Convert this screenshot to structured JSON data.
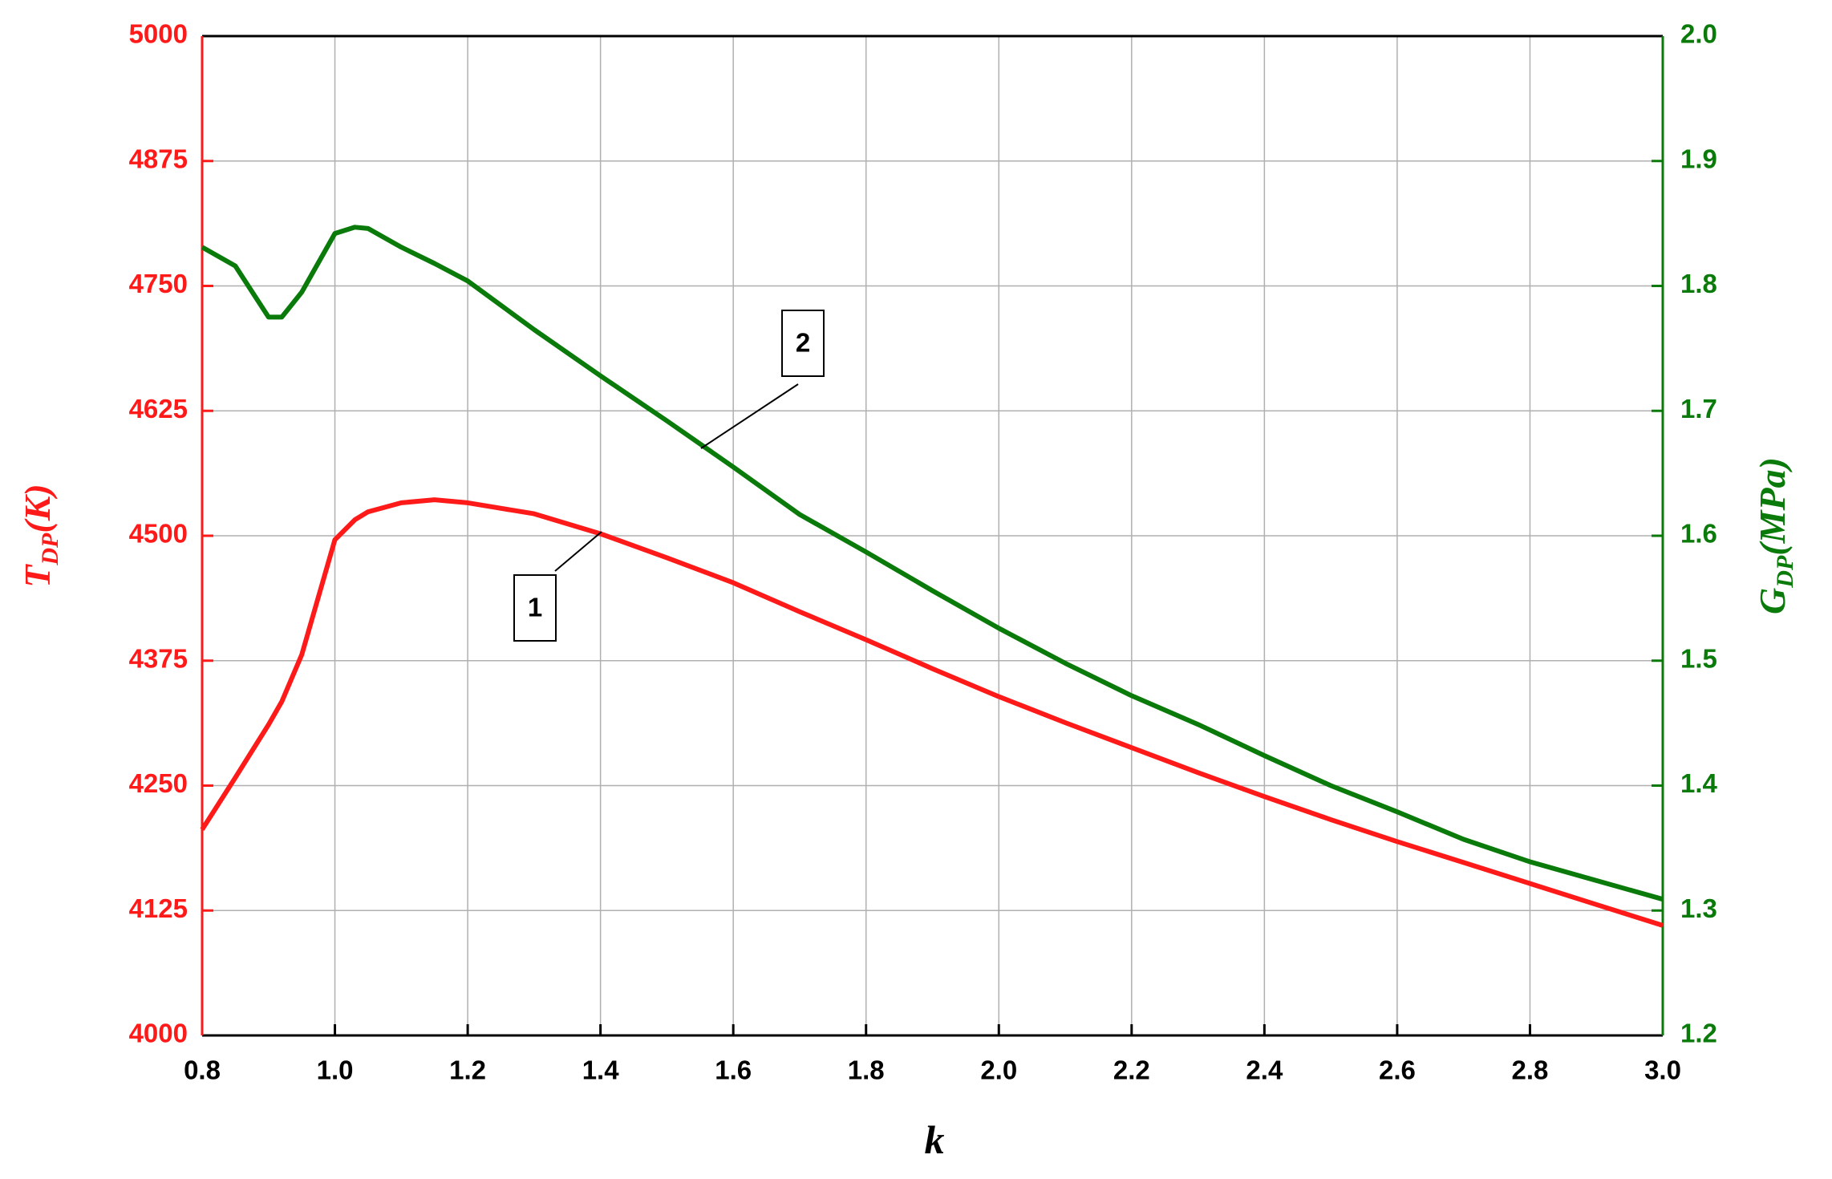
{
  "chart_data": {
    "type": "line",
    "x_label": "k",
    "y_label": {
      "main": "T",
      "sub": "DP",
      "unit": "(K)"
    },
    "y2_label": {
      "main": "G",
      "sub": "DP",
      "unit": "(MPa)"
    },
    "xlim": [
      0.8,
      3.0
    ],
    "xticks": [
      0.8,
      {
        "value": 1.0,
        "label": "1.0"
      },
      1.2,
      1.4,
      1.6,
      1.8,
      {
        "value": 2.0,
        "label": "2.0"
      },
      2.2,
      2.4,
      2.6,
      2.8,
      {
        "value": 3.0,
        "label": "3.0"
      }
    ],
    "ylim": [
      4000,
      5000
    ],
    "yticks": [
      4000,
      4125,
      4250,
      4375,
      4500,
      4625,
      4750,
      4875,
      5000
    ],
    "y2lim": [
      1.2,
      2.0
    ],
    "y2ticks": [
      1.2,
      1.3,
      1.4,
      1.5,
      1.6,
      1.7,
      1.8,
      1.9,
      {
        "value": 2.0,
        "label": "2.0"
      }
    ],
    "grid": true,
    "x": [
      0.8,
      0.85,
      0.9,
      0.92,
      0.95,
      1.0,
      1.03,
      1.05,
      1.1,
      1.15,
      1.2,
      1.3,
      1.4,
      1.5,
      1.6,
      1.7,
      1.8,
      1.9,
      2.0,
      2.1,
      2.2,
      2.3,
      2.4,
      2.5,
      2.6,
      2.7,
      2.8,
      2.9,
      3.0
    ],
    "series": [
      {
        "name": "1",
        "color": "#ff1a1a",
        "axis": "y",
        "values": [
          4206,
          4258,
          4311,
          4334,
          4381,
          4496,
          4516,
          4524,
          4533,
          4536,
          4533,
          4522,
          4502,
          4478,
          4453,
          4424,
          4396,
          4367,
          4339,
          4313,
          4288,
          4263,
          4239,
          4216,
          4194,
          4173,
          4152,
          4131,
          4110
        ]
      },
      {
        "name": "2",
        "color": "#0a7a0a",
        "axis": "y2",
        "values": [
          1.831,
          1.816,
          1.775,
          1.775,
          1.795,
          1.842,
          1.847,
          1.846,
          1.831,
          1.818,
          1.804,
          1.765,
          1.728,
          1.692,
          1.655,
          1.617,
          1.587,
          1.556,
          1.526,
          1.498,
          1.472,
          1.449,
          1.424,
          1.4,
          1.379,
          1.357,
          1.339,
          1.324,
          1.309
        ]
      }
    ]
  }
}
